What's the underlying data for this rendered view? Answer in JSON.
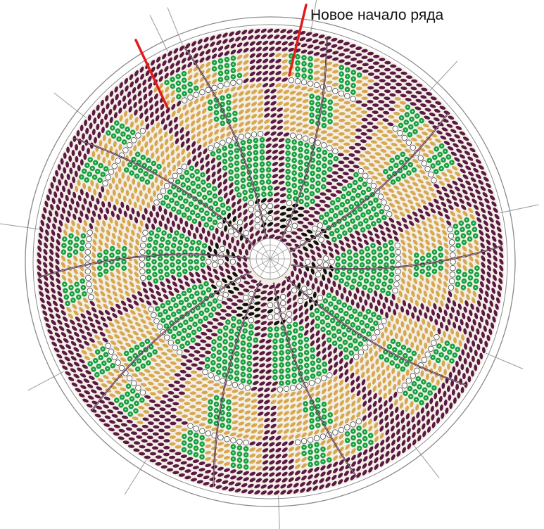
{
  "annotation": {
    "label": "Новое начало ряда",
    "marker_color": "#e31b1b"
  },
  "pattern": {
    "sectors": 10,
    "bead_colors": {
      "background": "#5a1a44",
      "gold": "#d7a852",
      "green": "#17a041",
      "black": "#111111",
      "white": "#ffffff",
      "guide_line": "#9a9a9a"
    }
  }
}
